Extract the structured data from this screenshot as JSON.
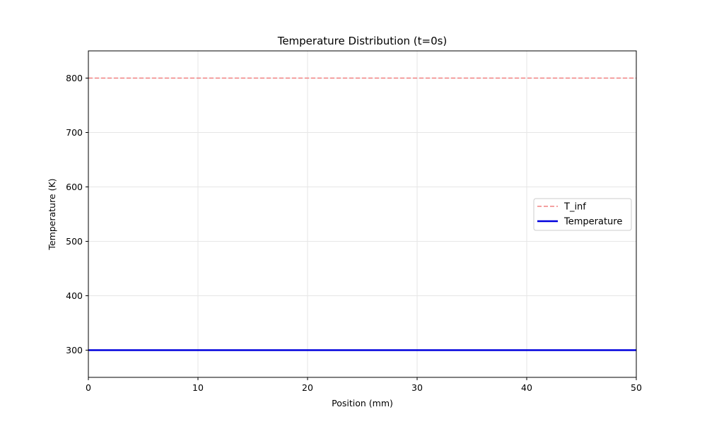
{
  "chart_data": {
    "type": "line",
    "title": "Temperature Distribution (t=0s)",
    "xlabel": "Position (mm)",
    "ylabel": "Temperature (K)",
    "xlim": [
      0,
      50
    ],
    "ylim": [
      250,
      850
    ],
    "xticks": [
      0,
      10,
      20,
      30,
      40,
      50
    ],
    "yticks": [
      300,
      400,
      500,
      600,
      700,
      800
    ],
    "grid": true,
    "legend_position": "center-right",
    "series": [
      {
        "name": "T_inf",
        "x": [
          0,
          50
        ],
        "y": [
          800,
          800
        ],
        "color": "#f08080",
        "style": "dashed"
      },
      {
        "name": "Temperature",
        "x": [
          0,
          50
        ],
        "y": [
          300,
          300
        ],
        "color": "#0000dd",
        "style": "solid"
      }
    ]
  }
}
